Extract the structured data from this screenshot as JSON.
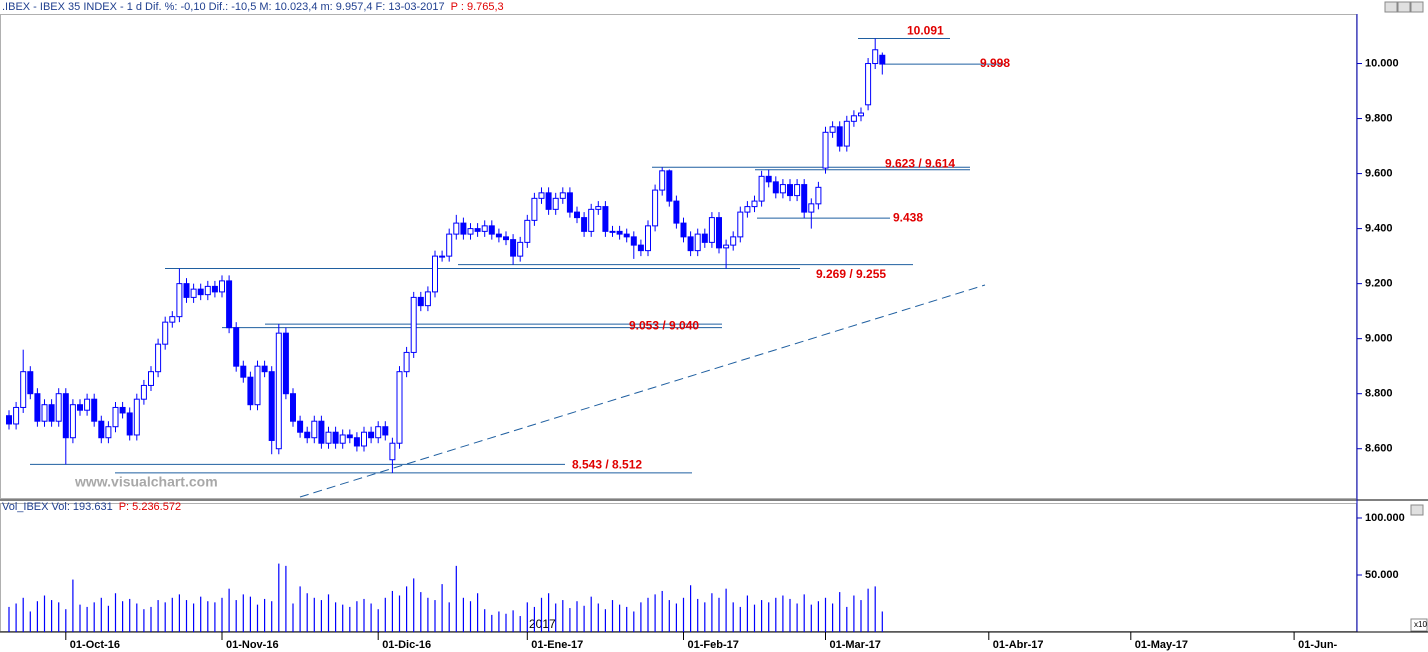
{
  "chart_data": [
    {
      "type": "candlestick",
      "title": ".IBEX - IBEX 35 INDEX - 1 d Dif. %: -0,10 Dif.: -10,5 M: 10.023,4 m: 9.957,4 F: 13-03-2017",
      "title_price": "P : 9.765,3",
      "watermark": "www.visualchart.com",
      "year_label": "2017",
      "color": "#0000ff",
      "level_color": "#1f5fa0",
      "categories": [
        null,
        null,
        null,
        null,
        null,
        null,
        null,
        null,
        "01-Oct-16",
        null,
        null,
        null,
        null,
        null,
        null,
        null,
        null,
        null,
        null,
        null,
        null,
        null,
        null,
        null,
        null,
        null,
        null,
        null,
        null,
        null,
        "01-Nov-16",
        null,
        null,
        null,
        null,
        null,
        null,
        null,
        null,
        null,
        null,
        null,
        null,
        null,
        null,
        null,
        null,
        null,
        null,
        null,
        null,
        null,
        "01-Dic-16",
        null,
        null,
        null,
        null,
        null,
        null,
        null,
        null,
        null,
        null,
        null,
        null,
        null,
        null,
        null,
        null,
        null,
        null,
        null,
        null,
        "01-Ene-17",
        null,
        null,
        null,
        null,
        null,
        null,
        null,
        null,
        null,
        null,
        null,
        null,
        null,
        null,
        null,
        null,
        null,
        null,
        null,
        null,
        null,
        "01-Feb-17",
        null,
        null,
        null,
        null,
        null,
        null,
        null,
        null,
        null,
        null,
        null,
        null,
        null,
        null,
        null,
        null,
        null,
        null,
        null,
        "01-Mar-17",
        null,
        null,
        null,
        null,
        null,
        null,
        null,
        null,
        null,
        null,
        null,
        null,
        null,
        null,
        null,
        null,
        null,
        null,
        null,
        null,
        null,
        null,
        "01-Abr-17",
        null,
        null,
        null,
        null,
        null,
        null,
        null,
        null,
        null,
        null,
        null,
        null,
        null,
        null,
        null,
        null,
        null,
        null,
        null,
        "01-May-17",
        null,
        null,
        null,
        null,
        null,
        null,
        null,
        null,
        null,
        null,
        null,
        null,
        null,
        null,
        null,
        null,
        null,
        null,
        null,
        null,
        null,
        null,
        "01-Jun-",
        null,
        null,
        null,
        null,
        null,
        null,
        null,
        null
      ],
      "open": [
        8720,
        8690,
        8750,
        8880,
        8800,
        8700,
        8760,
        8700,
        8800,
        8640,
        8760,
        8740,
        8780,
        8700,
        8640,
        8680,
        8750,
        8730,
        8650,
        8780,
        8830,
        8880,
        8980,
        9060,
        9080,
        9200,
        9150,
        9180,
        9160,
        9190,
        9170,
        9210,
        9040,
        8900,
        8860,
        8760,
        8900,
        8880,
        8600,
        9020,
        8800,
        8700,
        8660,
        8640,
        8700,
        8620,
        8660,
        8620,
        8650,
        8640,
        8610,
        8660,
        8640,
        8680,
        8560,
        8620,
        8880,
        8950,
        9150,
        9120,
        9170,
        9300,
        9300,
        9380,
        9420,
        9380,
        9400,
        9390,
        9410,
        9380,
        9370,
        9360,
        9300,
        9350,
        9430,
        9510,
        9530,
        9470,
        9510,
        9530,
        9460,
        9440,
        9390,
        9470,
        9480,
        9390,
        9390,
        9380,
        9370,
        9340,
        9320,
        9410,
        9540,
        9610,
        9500,
        9420,
        9370,
        9320,
        9380,
        9350,
        9440,
        9330,
        9340,
        9370,
        9460,
        9480,
        9500,
        9590,
        9570,
        9530,
        9560,
        9520,
        9560,
        9460,
        9490,
        9620,
        9750,
        9770,
        9700,
        9790,
        9810,
        9850,
        10000,
        10030,
        null,
        null,
        null,
        null,
        null,
        null,
        null,
        null,
        null,
        null,
        null,
        null,
        null,
        null,
        null,
        null,
        null,
        null,
        null,
        null,
        null,
        null,
        null,
        null,
        null,
        null,
        null,
        null,
        null,
        null,
        null,
        null,
        null,
        null,
        null,
        null,
        null,
        null,
        null,
        null,
        null,
        null,
        null,
        null,
        null,
        null,
        null,
        null,
        null,
        null,
        null,
        null,
        null,
        null,
        null,
        null,
        null,
        null,
        null,
        null,
        null,
        null,
        null,
        null,
        null,
        null
      ],
      "high": [
        8740,
        8770,
        8960,
        8900,
        8820,
        8780,
        8780,
        8820,
        8820,
        8780,
        8780,
        8800,
        8800,
        8720,
        8700,
        8770,
        8770,
        8750,
        8800,
        8850,
        8900,
        9000,
        9080,
        9100,
        9255,
        9220,
        9200,
        9200,
        9210,
        9210,
        9230,
        9230,
        9060,
        8920,
        8880,
        8920,
        8920,
        8900,
        9053,
        9040,
        8820,
        8720,
        8680,
        8720,
        8720,
        8680,
        8680,
        8670,
        8670,
        8660,
        8680,
        8680,
        8700,
        8700,
        8640,
        8900,
        8970,
        9170,
        9170,
        9190,
        9320,
        9320,
        9400,
        9450,
        9440,
        9420,
        9420,
        9430,
        9430,
        9400,
        9390,
        9380,
        9370,
        9450,
        9530,
        9550,
        9550,
        9530,
        9550,
        9550,
        9480,
        9460,
        9490,
        9500,
        9500,
        9410,
        9410,
        9400,
        9390,
        9360,
        9430,
        9560,
        9623,
        9615,
        9520,
        9440,
        9390,
        9400,
        9400,
        9460,
        9460,
        9360,
        9390,
        9480,
        9500,
        9520,
        9610,
        9614,
        9590,
        9580,
        9580,
        9580,
        9580,
        9510,
        9570,
        9770,
        9790,
        9790,
        9810,
        9830,
        9840,
        10020,
        10091,
        10040,
        null,
        null,
        null,
        null,
        null,
        null,
        null,
        null,
        null,
        null,
        null,
        null,
        null,
        null,
        null,
        null,
        null,
        null,
        null,
        null,
        null,
        null,
        null,
        null,
        null,
        null,
        null,
        null,
        null,
        null,
        null,
        null,
        null,
        null,
        null,
        null,
        null,
        null,
        null,
        null,
        null,
        null,
        null,
        null,
        null,
        null,
        null,
        null,
        null,
        null,
        null,
        null,
        null,
        null,
        null,
        null,
        null,
        null,
        null,
        null,
        null,
        null,
        null,
        null,
        null,
        null
      ],
      "low": [
        8670,
        8670,
        8730,
        8780,
        8680,
        8680,
        8680,
        8680,
        8543,
        8620,
        8720,
        8720,
        8680,
        8620,
        8620,
        8660,
        8710,
        8630,
        8630,
        8760,
        8810,
        8860,
        8960,
        9040,
        9060,
        9130,
        9130,
        9140,
        9140,
        9150,
        9150,
        9020,
        8880,
        8840,
        8740,
        8740,
        8860,
        8580,
        8580,
        8780,
        8680,
        8640,
        8620,
        8620,
        8600,
        8600,
        8600,
        8600,
        8620,
        8590,
        8590,
        8620,
        8620,
        8630,
        8512,
        8600,
        8860,
        8930,
        9100,
        9100,
        9150,
        9280,
        9280,
        9360,
        9360,
        9360,
        9370,
        9370,
        9360,
        9350,
        9340,
        9269,
        9280,
        9330,
        9410,
        9490,
        9450,
        9450,
        9490,
        9440,
        9420,
        9370,
        9370,
        9450,
        9370,
        9370,
        9360,
        9350,
        9290,
        9300,
        9300,
        9390,
        9520,
        9480,
        9400,
        9350,
        9300,
        9300,
        9330,
        9330,
        9310,
        9255,
        9320,
        9350,
        9440,
        9460,
        9480,
        9550,
        9510,
        9510,
        9500,
        9500,
        9438,
        9400,
        9470,
        9600,
        9730,
        9680,
        9680,
        9770,
        9790,
        9830,
        9980,
        9960,
        null,
        null,
        null,
        null,
        null,
        null,
        null,
        null,
        null,
        null,
        null,
        null,
        null,
        null,
        null,
        null,
        null,
        null,
        null,
        null,
        null,
        null,
        null,
        null,
        null,
        null,
        null,
        null,
        null,
        null,
        null,
        null,
        null,
        null,
        null,
        null,
        null,
        null,
        null,
        null,
        null,
        null,
        null,
        null,
        null,
        null,
        null,
        null,
        null,
        null,
        null,
        null,
        null,
        null,
        null,
        null,
        null,
        null,
        null,
        null,
        null,
        null,
        null,
        null,
        null,
        null
      ],
      "close": [
        8690,
        8750,
        8880,
        8800,
        8700,
        8760,
        8700,
        8800,
        8640,
        8760,
        8740,
        8780,
        8700,
        8640,
        8680,
        8750,
        8730,
        8650,
        8780,
        8830,
        8880,
        8980,
        9060,
        9080,
        9200,
        9150,
        9180,
        9160,
        9190,
        9170,
        9210,
        9040,
        8900,
        8860,
        8760,
        8900,
        8880,
        8630,
        9020,
        8800,
        8700,
        8660,
        8640,
        8700,
        8620,
        8660,
        8620,
        8650,
        8640,
        8610,
        8660,
        8640,
        8680,
        8650,
        8620,
        8880,
        8950,
        9150,
        9120,
        9170,
        9300,
        9300,
        9380,
        9420,
        9380,
        9400,
        9390,
        9410,
        9380,
        9370,
        9360,
        9300,
        9350,
        9430,
        9510,
        9530,
        9470,
        9510,
        9530,
        9460,
        9440,
        9390,
        9470,
        9480,
        9390,
        9390,
        9380,
        9370,
        9340,
        9320,
        9410,
        9540,
        9610,
        9500,
        9420,
        9370,
        9320,
        9380,
        9350,
        9440,
        9330,
        9340,
        9370,
        9460,
        9480,
        9500,
        9590,
        9570,
        9530,
        9560,
        9520,
        9560,
        9460,
        9490,
        9550,
        9750,
        9770,
        9700,
        9790,
        9810,
        9820,
        10000,
        10050,
        9998,
        null,
        null,
        null,
        null,
        null,
        null,
        null,
        null,
        null,
        null,
        null,
        null,
        null,
        null,
        null,
        null,
        null,
        null,
        null,
        null,
        null,
        null,
        null,
        null,
        null,
        null,
        null,
        null,
        null,
        null,
        null,
        null,
        null,
        null,
        null,
        null,
        null,
        null,
        null,
        null,
        null,
        null,
        null,
        null,
        null,
        null,
        null,
        null,
        null,
        null,
        null,
        null,
        null,
        null,
        null,
        null,
        null,
        null,
        null,
        null,
        null,
        null,
        null,
        null,
        null,
        null
      ],
      "ylim": [
        8410,
        10180
      ],
      "yticks": [
        {
          "value": 10000,
          "label": "10.000"
        },
        {
          "value": 9800,
          "label": "9.800"
        },
        {
          "value": 9600,
          "label": "9.600"
        },
        {
          "value": 9400,
          "label": "9.400"
        },
        {
          "value": 9200,
          "label": "9.200"
        },
        {
          "value": 9000,
          "label": "9.000"
        },
        {
          "value": 8800,
          "label": "8.800"
        },
        {
          "value": 8600,
          "label": "8.600"
        }
      ],
      "levels": [
        {
          "label": "10.091",
          "values": [
            10091
          ]
        },
        {
          "label": "9.998",
          "values": [
            9998
          ]
        },
        {
          "label": "9.623 / 9.614",
          "values": [
            9623,
            9614
          ]
        },
        {
          "label": "9.438",
          "values": [
            9438
          ]
        },
        {
          "label": "9.269 / 9.255",
          "values": [
            9269,
            9255
          ]
        },
        {
          "label": "9.053 / 9.040",
          "values": [
            9053,
            9040
          ]
        },
        {
          "label": "8.543 / 8.512",
          "values": [
            8543,
            8512
          ]
        }
      ]
    },
    {
      "type": "bar",
      "title": "Vol_IBEX Vol: 193.631",
      "title_price": "P: 5.236.572",
      "multiplier_label": "x10",
      "color": "#0000ff",
      "values": [
        22000,
        25000,
        30000,
        18000,
        27000,
        32000,
        28000,
        26000,
        20000,
        46000,
        24000,
        22000,
        26000,
        30000,
        23000,
        34000,
        27000,
        29000,
        25000,
        20000,
        22000,
        28000,
        26000,
        30000,
        33000,
        28000,
        25000,
        31000,
        27000,
        26000,
        30000,
        38000,
        28000,
        33000,
        31000,
        24000,
        29000,
        27000,
        60000,
        58000,
        25000,
        40000,
        34000,
        30000,
        28000,
        33000,
        26000,
        24000,
        22000,
        27000,
        29000,
        25000,
        20000,
        30000,
        36000,
        32000,
        40000,
        47000,
        35000,
        30000,
        28000,
        42000,
        26000,
        58000,
        30000,
        27000,
        34000,
        20000,
        15000,
        18000,
        16000,
        19000,
        14000,
        26000,
        22000,
        30000,
        34000,
        25000,
        28000,
        21000,
        27000,
        23000,
        31000,
        25000,
        20000,
        28000,
        24000,
        22000,
        18000,
        26000,
        30000,
        33000,
        36000,
        28000,
        25000,
        30000,
        41000,
        29000,
        26000,
        34000,
        30000,
        38000,
        26000,
        22000,
        32000,
        24000,
        28000,
        26000,
        30000,
        32000,
        29000,
        25000,
        33000,
        24000,
        27000,
        30000,
        25000,
        35000,
        22000,
        32000,
        28000,
        38000,
        40000,
        18000,
        null,
        null,
        null,
        null,
        null,
        null,
        null,
        null,
        null,
        null,
        null,
        null,
        null,
        null,
        null,
        null,
        null,
        null,
        null,
        null,
        null,
        null,
        null,
        null,
        null,
        null,
        null,
        null,
        null,
        null,
        null,
        null,
        null,
        null,
        null,
        null,
        null,
        null,
        null,
        null,
        null,
        null,
        null,
        null,
        null,
        null,
        null,
        null,
        null,
        null,
        null,
        null,
        null,
        null,
        null,
        null,
        null,
        null,
        null,
        null,
        null,
        null,
        null,
        null,
        null,
        null
      ],
      "ylim": [
        0,
        107000
      ],
      "yticks": [
        {
          "value": 100000,
          "label": "100.000"
        },
        {
          "value": 50000,
          "label": "50.000"
        }
      ]
    }
  ]
}
